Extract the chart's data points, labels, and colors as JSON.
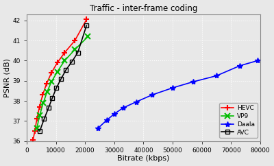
{
  "title": "Traffic - inter-frame coding",
  "xlabel": "Bitrate (kbps)",
  "ylabel": "PSNR (dB)",
  "xlim": [
    0,
    80000
  ],
  "ylim": [
    36,
    42.3
  ],
  "yticks": [
    36,
    37,
    38,
    39,
    40,
    41,
    42
  ],
  "xticks": [
    0,
    10000,
    20000,
    30000,
    40000,
    50000,
    60000,
    70000,
    80000
  ],
  "xtick_labels": [
    "0",
    "10000",
    "20000",
    "30000",
    "40000",
    "50000",
    "60000",
    "70000",
    "80000"
  ],
  "series": [
    {
      "label": "HEVC",
      "color": "#ff0000",
      "marker": "+",
      "markersize": 6,
      "markeredgewidth": 1.5,
      "linewidth": 1.2,
      "x": [
        2200,
        2800,
        3500,
        4400,
        5500,
        6800,
        8500,
        10500,
        13000,
        16500,
        20500
      ],
      "y": [
        36.05,
        36.5,
        37.1,
        37.7,
        38.3,
        38.85,
        39.4,
        39.9,
        40.4,
        41.0,
        42.05
      ]
    },
    {
      "label": "VP9",
      "color": "#00bb00",
      "marker": "x",
      "markersize": 6,
      "markeredgewidth": 1.5,
      "linewidth": 1.2,
      "x": [
        3500,
        4500,
        5700,
        7000,
        8500,
        10500,
        13000,
        16500,
        21000
      ],
      "y": [
        36.65,
        37.3,
        37.9,
        38.45,
        38.95,
        39.45,
        40.0,
        40.55,
        41.2
      ]
    },
    {
      "label": "Daala",
      "color": "#0000ff",
      "marker": "*",
      "markersize": 6,
      "markeredgewidth": 1.0,
      "linewidth": 1.2,
      "x": [
        24500,
        27500,
        30000,
        33000,
        37500,
        43000,
        50000,
        57000,
        65000,
        73000,
        79000
      ],
      "y": [
        36.65,
        37.05,
        37.35,
        37.65,
        37.95,
        38.3,
        38.65,
        38.95,
        39.25,
        39.75,
        40.0
      ]
    },
    {
      "label": "AVC",
      "color": "#000000",
      "marker": "s",
      "markersize": 5,
      "markeredgewidth": 1.0,
      "markerfacecolor": "none",
      "linewidth": 1.2,
      "x": [
        4500,
        6000,
        7500,
        8800,
        10200,
        11800,
        13500,
        15500,
        17500,
        20500
      ],
      "y": [
        36.5,
        37.1,
        37.65,
        38.15,
        38.65,
        39.1,
        39.55,
        39.95,
        40.4,
        41.75
      ]
    }
  ],
  "background_color": "#e8e8e8",
  "plot_bg_color": "#e8e8e8",
  "grid_color": "#ffffff",
  "legend_loc": "lower right"
}
